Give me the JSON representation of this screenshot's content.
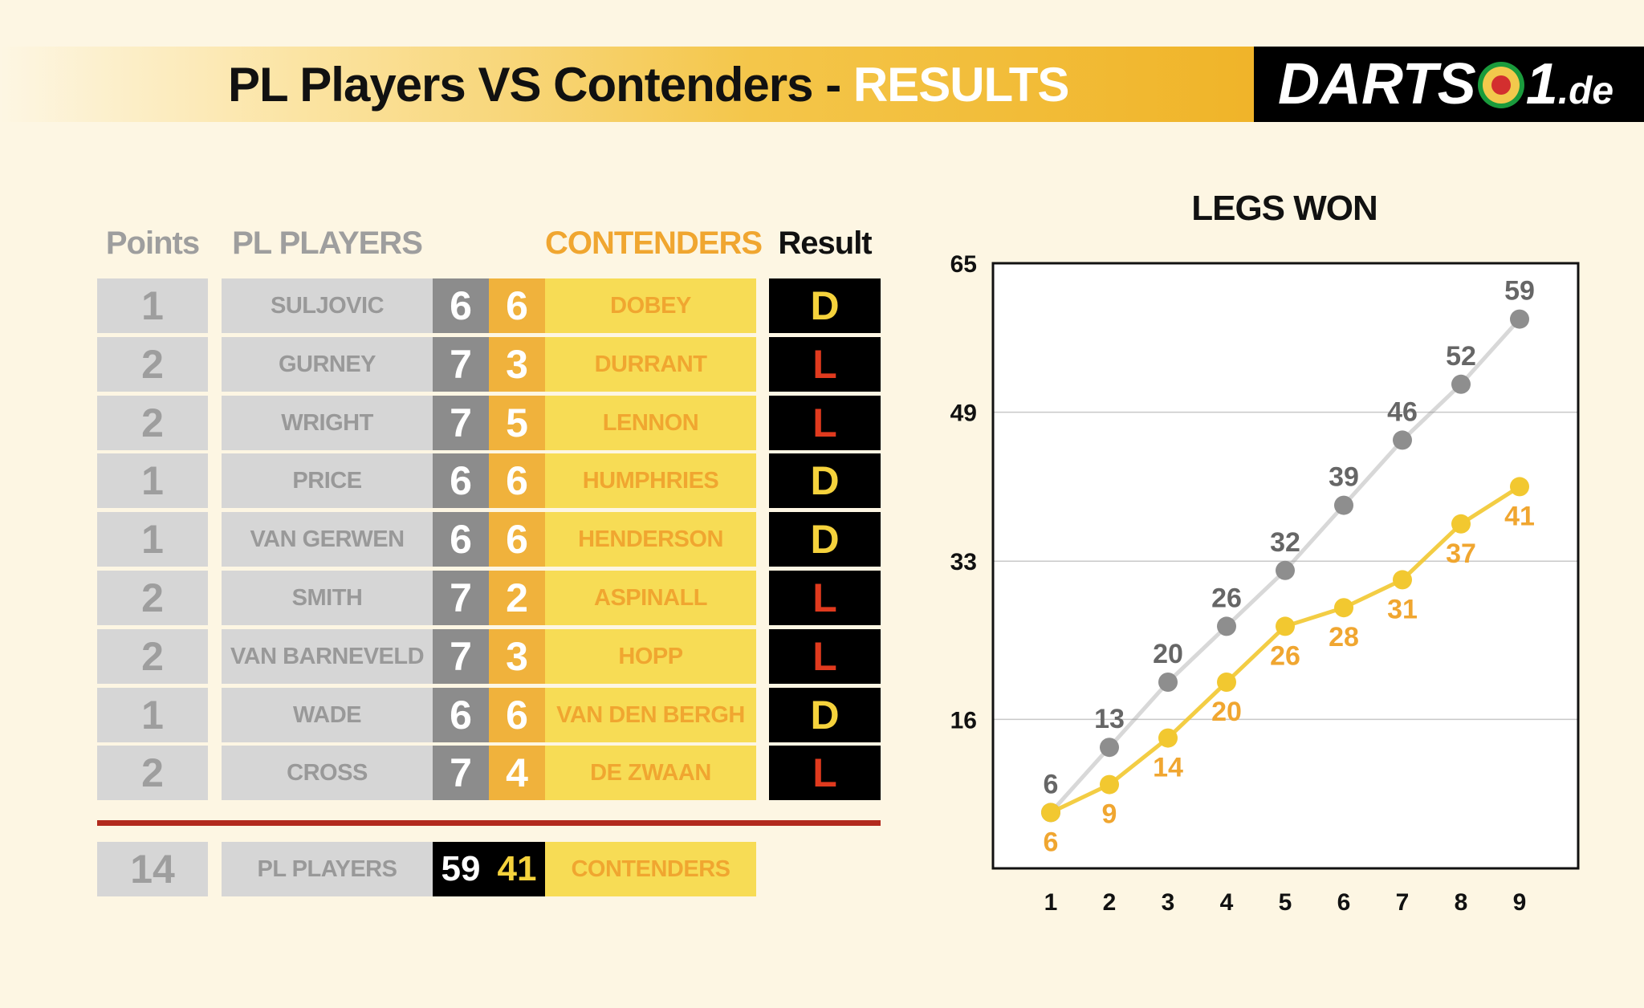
{
  "header": {
    "title": "PL Players VS Contenders - ",
    "title_accent": "RESULTS",
    "logo_text_left": "DARTS",
    "logo_text_right": "1",
    "logo_suffix": ".de"
  },
  "table": {
    "headers": {
      "points": "Points",
      "pl_players": "PL PLAYERS",
      "contenders": "CONTENDERS",
      "result": "Result"
    },
    "rows": [
      {
        "points": "1",
        "pl_player": "SULJOVIC",
        "pl_score": "6",
        "con_score": "6",
        "contender": "DOBEY",
        "result": "D"
      },
      {
        "points": "2",
        "pl_player": "GURNEY",
        "pl_score": "7",
        "con_score": "3",
        "contender": "DURRANT",
        "result": "L"
      },
      {
        "points": "2",
        "pl_player": "WRIGHT",
        "pl_score": "7",
        "con_score": "5",
        "contender": "LENNON",
        "result": "L"
      },
      {
        "points": "1",
        "pl_player": "PRICE",
        "pl_score": "6",
        "con_score": "6",
        "contender": "HUMPHRIES",
        "result": "D"
      },
      {
        "points": "1",
        "pl_player": "VAN GERWEN",
        "pl_score": "6",
        "con_score": "6",
        "contender": "HENDERSON",
        "result": "D"
      },
      {
        "points": "2",
        "pl_player": "SMITH",
        "pl_score": "7",
        "con_score": "2",
        "contender": "ASPINALL",
        "result": "L"
      },
      {
        "points": "2",
        "pl_player": "VAN BARNEVELD",
        "pl_score": "7",
        "con_score": "3",
        "contender": "HOPP",
        "result": "L"
      },
      {
        "points": "1",
        "pl_player": "WADE",
        "pl_score": "6",
        "con_score": "6",
        "contender": "VAN DEN BERGH",
        "result": "D"
      },
      {
        "points": "2",
        "pl_player": "CROSS",
        "pl_score": "7",
        "con_score": "4",
        "contender": "DE ZWAAN",
        "result": "L"
      }
    ],
    "totals": {
      "points": "14",
      "pl_label": "PL PLAYERS",
      "pl_score": "59",
      "con_score": "41",
      "con_label": "CONTENDERS"
    }
  },
  "chart_data": {
    "type": "line",
    "title": "LEGS WON",
    "xlabel": "",
    "ylabel": "",
    "x": [
      1,
      2,
      3,
      4,
      5,
      6,
      7,
      8,
      9
    ],
    "ylim": [
      0,
      65
    ],
    "yticks": [
      16,
      33,
      49,
      65
    ],
    "grid": true,
    "legend": "none",
    "series": [
      {
        "values": [
          6,
          13,
          20,
          26,
          32,
          39,
          46,
          52,
          59
        ],
        "color": "#8e8e8e",
        "label_color": "#666666"
      },
      {
        "values": [
          6,
          9,
          14,
          20,
          26,
          28,
          31,
          37,
          41
        ],
        "color": "#f2c830",
        "label_color": "#f0a630"
      }
    ]
  },
  "colors": {
    "background": "#fdf6e3",
    "gray": "#d6d6d6",
    "gold": "#f0b23c",
    "yellow": "#f7dc55",
    "red": "#e03a1e",
    "divider": "#b22a1d"
  }
}
